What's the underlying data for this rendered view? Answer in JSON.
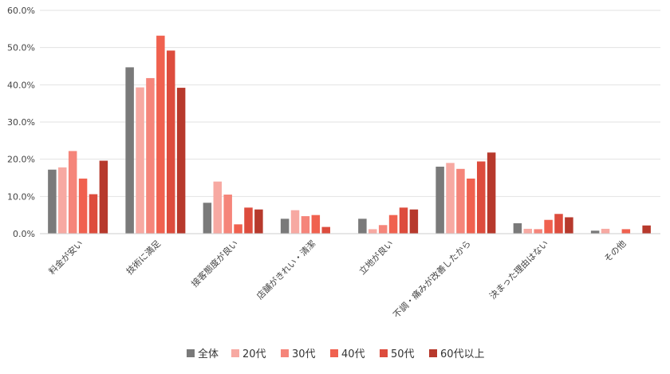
{
  "chart_data": {
    "type": "bar",
    "title": "",
    "xlabel": "",
    "ylabel": "",
    "ylim": [
      0,
      60
    ],
    "y_ticks": [
      0,
      10,
      20,
      30,
      40,
      50,
      60
    ],
    "y_tick_labels": [
      "0.0%",
      "10.0%",
      "20.0%",
      "30.0%",
      "40.0%",
      "50.0%",
      "60.0%"
    ],
    "grid": true,
    "legend_position": "bottom",
    "categories": [
      "料金が安い",
      "技術に満足",
      "接客態度が良い",
      "店舗がきれい・清潔",
      "立地が良い",
      "不調・痛みが改善したから",
      "決まった理由はない",
      "その他"
    ],
    "series": [
      {
        "name": "全体",
        "color": "#7a7a7a",
        "values": [
          17.2,
          44.7,
          8.3,
          4.0,
          4.0,
          18.0,
          2.8,
          0.8
        ]
      },
      {
        "name": "20代",
        "color": "#f7a9a2",
        "values": [
          17.8,
          39.3,
          14.0,
          6.3,
          1.2,
          19.0,
          1.3,
          1.3
        ]
      },
      {
        "name": "30代",
        "color": "#f5857a",
        "values": [
          22.2,
          41.8,
          10.5,
          4.7,
          2.3,
          17.4,
          1.2,
          0.0
        ]
      },
      {
        "name": "40代",
        "color": "#f0614f",
        "values": [
          14.8,
          53.2,
          2.5,
          5.0,
          5.0,
          14.8,
          3.7,
          1.2
        ]
      },
      {
        "name": "50代",
        "color": "#dd4c3d",
        "values": [
          10.6,
          49.2,
          7.0,
          1.8,
          7.0,
          19.4,
          5.3,
          0.0
        ]
      },
      {
        "name": "60代以上",
        "color": "#b7392c",
        "values": [
          19.6,
          39.2,
          6.5,
          0.0,
          6.5,
          21.8,
          4.4,
          2.2
        ]
      }
    ]
  }
}
